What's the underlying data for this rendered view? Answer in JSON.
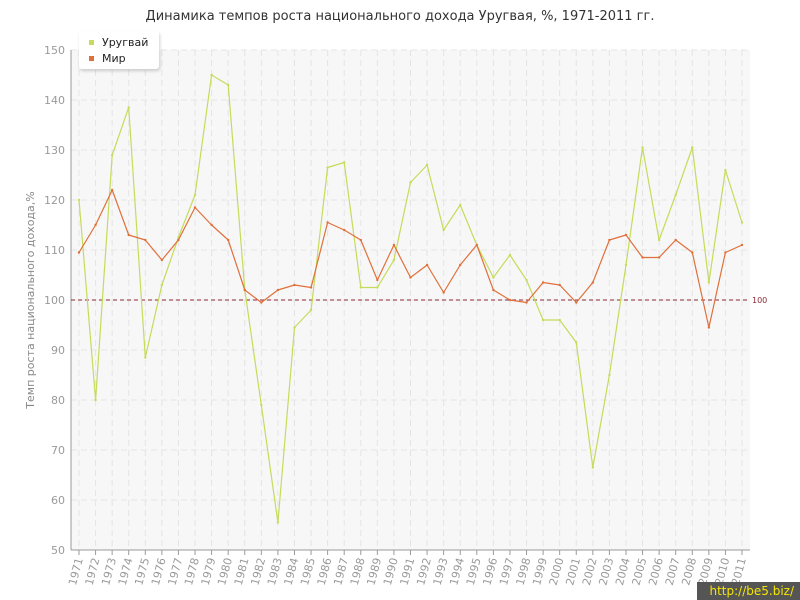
{
  "chart_data": {
    "type": "line",
    "title": "Динамика темпов роста национального дохода Уругвая, %, 1971-2011 гг.",
    "ylabel": "Темп роста национального дохода,%",
    "xlabel": "",
    "ylim": [
      50,
      150
    ],
    "yticks": [
      50,
      60,
      70,
      80,
      90,
      100,
      110,
      120,
      130,
      140,
      150
    ],
    "grid": true,
    "legend_position": "top-left",
    "categories": [
      "1971",
      "1972",
      "1973",
      "1974",
      "1975",
      "1976",
      "1977",
      "1978",
      "1979",
      "1980",
      "1981",
      "1982",
      "1983",
      "1984",
      "1985",
      "1986",
      "1987",
      "1988",
      "1989",
      "1990",
      "1991",
      "1992",
      "1993",
      "1994",
      "1995",
      "1996",
      "1997",
      "1998",
      "1999",
      "2000",
      "2001",
      "2002",
      "2003",
      "2004",
      "2005",
      "2006",
      "2007",
      "2008",
      "2009",
      "2010",
      "2011"
    ],
    "series": [
      {
        "name": "Уругвай",
        "color": "#c4dc5a",
        "values": [
          120,
          80,
          129,
          138.5,
          88.5,
          103,
          112.5,
          121,
          145,
          143,
          102,
          79,
          55.5,
          94.5,
          98,
          126.5,
          127.5,
          102.5,
          102.5,
          108,
          123.5,
          127,
          114,
          119,
          111,
          104.5,
          109,
          104,
          96,
          96,
          91.5,
          66.5,
          85,
          107,
          130.5,
          112,
          121,
          130.5,
          103.5,
          126,
          115.5
        ]
      },
      {
        "name": "Мир",
        "color": "#e0703a",
        "values": [
          109.5,
          115,
          122,
          113,
          112,
          108,
          112,
          118.5,
          115,
          112,
          102,
          99.5,
          102,
          103,
          102.5,
          115.5,
          114,
          112,
          104,
          111,
          104.5,
          107,
          101.5,
          107,
          111,
          102,
          100,
          99.5,
          103.5,
          103,
          99.5,
          103.5,
          112,
          113,
          108.5,
          108.5,
          112,
          109.5,
          94.5,
          109.5,
          111
        ]
      }
    ],
    "reference_line": {
      "value": 100,
      "label": "100",
      "color": "#8b2a36"
    }
  },
  "watermark": "http://be5.biz/",
  "colors": {
    "grid": "#e4e4e4",
    "axis": "#9a9a9a",
    "tick_text": "#9a9a9a",
    "background": "#f7f7f7"
  }
}
